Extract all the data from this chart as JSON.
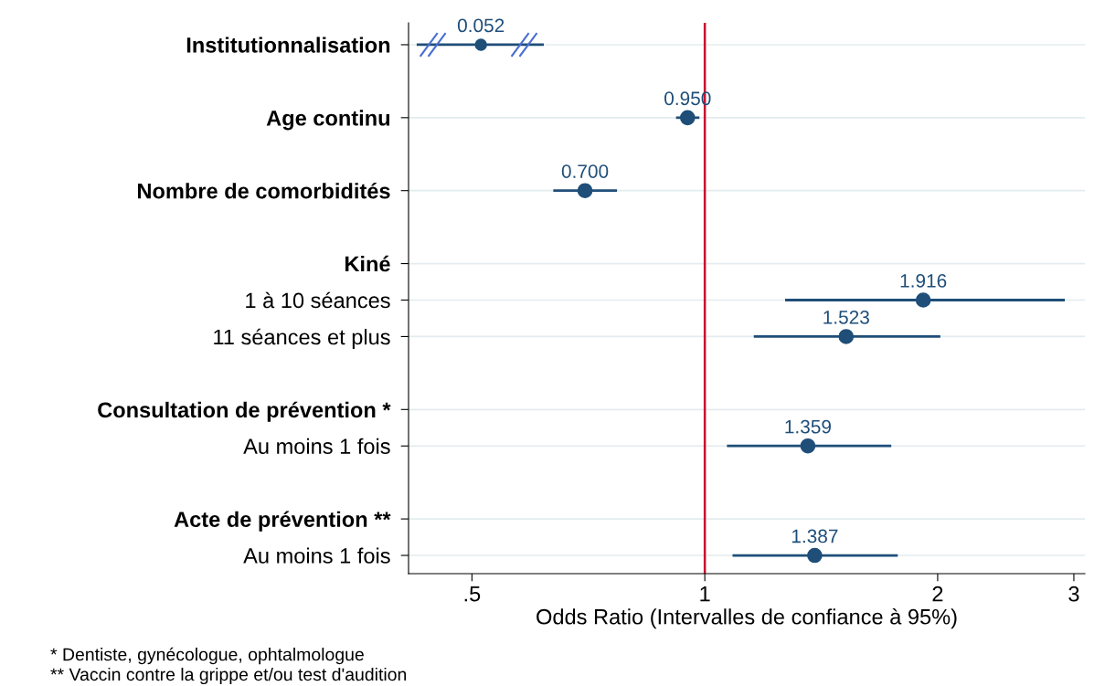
{
  "chart_data": {
    "type": "scatter",
    "orientation": "horizontal",
    "xlabel": "Odds Ratio (Intervalles de confiance à 95%)",
    "categories": [
      "Institutionnalisation",
      "Age continu",
      "Nombre de comorbidités",
      "Kiné",
      "1 à 10 séances",
      "11 séances et plus",
      "Consultation de prévention *",
      "Au moins 1 fois",
      "Acte de prévention **",
      "Au moins 1 fois"
    ],
    "series": [
      {
        "color": "#1f4e79",
        "values": [
          null,
          0.95,
          0.7,
          null,
          1.916,
          1.523,
          null,
          1.359,
          null,
          1.387
        ],
        "errors": [
          null,
          [
            0.918,
            0.984
          ],
          [
            0.637,
            0.77
          ],
          null,
          [
            1.27,
            2.92
          ],
          [
            1.157,
            2.016
          ],
          null,
          [
            1.068,
            1.742
          ],
          null,
          [
            1.086,
            1.776
          ]
        ],
        "value_labels": [
          "0.052",
          "0.950",
          "0.700",
          null,
          "1.916",
          "1.523",
          null,
          "1.359",
          null,
          "1.387"
        ]
      }
    ],
    "log": "x",
    "xlim": [
      0.414,
      3.1
    ],
    "xticks": [
      {
        "value": 0.5,
        "label": ".5"
      },
      1,
      2,
      3
    ],
    "ref_lines": [
      {
        "axis": "x",
        "value": 1,
        "color": "#c8102e"
      }
    ],
    "grid": "y",
    "marker": "circle",
    "legend": false,
    "annotations": [
      "* Dentiste, gynécologue, ophtalmologue",
      "** Vaccin contre la grippe et/ou test d'audition"
    ]
  }
}
